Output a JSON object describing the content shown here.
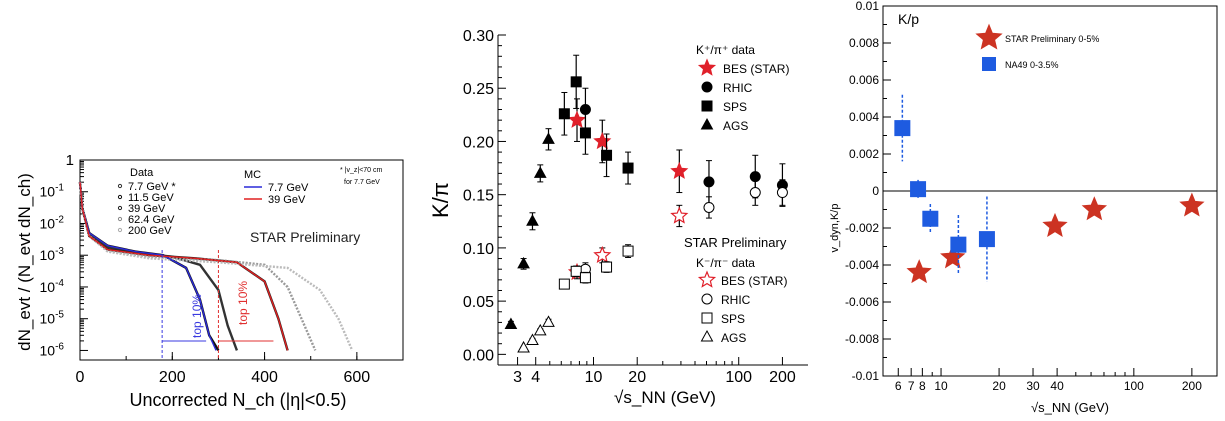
{
  "chart_data": [
    {
      "type": "line",
      "xlabel": "Uncorrected N_ch (|η|<0.5)",
      "ylabel": "dN_evt / (N_evt dN_ch)",
      "y_scale": "log",
      "xlim": [
        0,
        700
      ],
      "ylim": [
        5e-07,
        1
      ],
      "x_ticks": [
        "0",
        "200",
        "400",
        "600"
      ],
      "y_ticks": [
        "10^-6",
        "10^-5",
        "10^-4",
        "10^-3",
        "10^-2",
        "10^-1",
        "1"
      ],
      "legend_data_title": "Data",
      "legend_data": [
        "7.7 GeV *",
        "11.5 GeV",
        "39 GeV",
        "62.4 GeV",
        "200 GeV"
      ],
      "legend_mc_title": "MC",
      "legend_mc": [
        "7.7 GeV",
        "39 GeV"
      ],
      "footnote": [
        "* |v_z|<70 cm",
        "for 7.7 GeV"
      ],
      "watermark": "STAR Preliminary",
      "annotations": [
        "top 10%",
        "top 10%"
      ],
      "top10_cuts": [
        178,
        300
      ],
      "series": [
        {
          "name": "7.7 GeV *",
          "color": "#111111",
          "x": [
            0,
            5,
            20,
            60,
            120,
            180,
            230,
            260,
            280,
            300
          ],
          "y": [
            0.2,
            0.03,
            0.005,
            0.002,
            0.0013,
            0.001,
            0.0004,
            4e-05,
            3e-06,
            1e-06
          ]
        },
        {
          "name": "11.5 GeV",
          "color": "#333333",
          "x": [
            0,
            5,
            20,
            60,
            120,
            200,
            260,
            300,
            320,
            340
          ],
          "y": [
            0.2,
            0.03,
            0.005,
            0.0018,
            0.0012,
            0.0009,
            0.0005,
            8e-05,
            6e-06,
            1e-06
          ]
        },
        {
          "name": "39 GeV",
          "color": "#222222",
          "x": [
            0,
            5,
            20,
            60,
            150,
            250,
            340,
            400,
            430,
            450
          ],
          "y": [
            0.2,
            0.03,
            0.004,
            0.0015,
            0.001,
            0.0008,
            0.0006,
            0.00015,
            1e-05,
            1e-06
          ]
        },
        {
          "name": "62.4 GeV",
          "color": "#999999",
          "x": [
            0,
            5,
            20,
            60,
            150,
            300,
            400,
            450,
            480,
            510
          ],
          "y": [
            0.2,
            0.03,
            0.004,
            0.0014,
            0.0009,
            0.0007,
            0.0005,
            0.0001,
            1e-05,
            1e-06
          ]
        },
        {
          "name": "200 GeV",
          "color": "#bbbbbb",
          "x": [
            0,
            5,
            20,
            60,
            150,
            300,
            450,
            520,
            560,
            590
          ],
          "y": [
            0.2,
            0.03,
            0.004,
            0.0013,
            0.0008,
            0.0006,
            0.0004,
            8e-05,
            1e-05,
            1e-06
          ]
        },
        {
          "name": "MC 7.7 GeV",
          "color": "#2a2ad8",
          "x": [
            0,
            5,
            20,
            60,
            120,
            180,
            230,
            260,
            280,
            295
          ],
          "y": [
            0.2,
            0.03,
            0.005,
            0.002,
            0.0013,
            0.001,
            0.0004,
            4e-05,
            3e-06,
            1e-06
          ]
        },
        {
          "name": "MC 39 GeV",
          "color": "#e02020",
          "x": [
            0,
            5,
            20,
            60,
            150,
            250,
            340,
            400,
            430,
            450
          ],
          "y": [
            0.2,
            0.03,
            0.004,
            0.0015,
            0.001,
            0.0008,
            0.0006,
            0.00015,
            1e-05,
            1e-06
          ]
        }
      ]
    },
    {
      "type": "scatter",
      "xlabel": "√s_NN (GeV)",
      "ylabel": "K/π",
      "x_scale": "log",
      "xlim": [
        2.2,
        300
      ],
      "ylim": [
        -0.01,
        0.3
      ],
      "x_ticks": [
        "3",
        "4",
        "10",
        "20",
        "100",
        "200"
      ],
      "y_ticks": [
        "0.00",
        "0.05",
        "0.10",
        "0.15",
        "0.20",
        "0.25",
        "0.30"
      ],
      "legend_plus_title": "K⁺/π⁺ data",
      "legend_plus": [
        "BES (STAR)",
        "RHIC",
        "SPS",
        "AGS"
      ],
      "legend_minus_title": "K⁻/π⁻ data",
      "legend_minus": [
        "BES (STAR)",
        "RHIC",
        "SPS",
        "AGS"
      ],
      "watermark": "STAR Preliminary",
      "series": [
        {
          "name": "K+ BES (STAR)",
          "marker": "star-filled",
          "points": [
            [
              7.7,
              0.22,
              0.02
            ],
            [
              11.5,
              0.2,
              0.02
            ],
            [
              39,
              0.172,
              0.02
            ]
          ]
        },
        {
          "name": "K+ RHIC",
          "marker": "circle-filled",
          "points": [
            [
              8.8,
              0.23,
              0.02
            ],
            [
              62.4,
              0.162,
              0.02
            ],
            [
              130,
              0.167,
              0.02
            ],
            [
              200,
              0.159,
              0.02
            ]
          ]
        },
        {
          "name": "K+ SPS",
          "marker": "square-filled",
          "points": [
            [
              6.3,
              0.226,
              0.02
            ],
            [
              7.6,
              0.256,
              0.025
            ],
            [
              8.8,
              0.208,
              0.02
            ],
            [
              12.3,
              0.187,
              0.02
            ],
            [
              17.3,
              0.175,
              0.015
            ]
          ]
        },
        {
          "name": "K+ AGS",
          "marker": "triangle-filled",
          "points": [
            [
              2.7,
              0.028,
              0.003
            ],
            [
              3.3,
              0.085,
              0.005
            ],
            [
              3.8,
              0.125,
              0.008
            ],
            [
              4.3,
              0.17,
              0.008
            ],
            [
              4.9,
              0.202,
              0.01
            ]
          ]
        },
        {
          "name": "K- BES (STAR)",
          "marker": "star-open",
          "points": [
            [
              7.7,
              0.077,
              0.006
            ],
            [
              11.5,
              0.093,
              0.007
            ],
            [
              39,
              0.13,
              0.01
            ]
          ]
        },
        {
          "name": "K- RHIC",
          "marker": "circle-open",
          "points": [
            [
              8.8,
              0.08,
              0.006
            ],
            [
              62.4,
              0.138,
              0.01
            ],
            [
              130,
              0.152,
              0.012
            ],
            [
              200,
              0.152,
              0.012
            ]
          ]
        },
        {
          "name": "K- SPS",
          "marker": "square-open",
          "points": [
            [
              6.3,
              0.066,
              0.004
            ],
            [
              7.6,
              0.078,
              0.005
            ],
            [
              8.8,
              0.072,
              0.005
            ],
            [
              12.3,
              0.082,
              0.005
            ],
            [
              17.3,
              0.097,
              0.006
            ]
          ]
        },
        {
          "name": "K- AGS",
          "marker": "triangle-open",
          "points": [
            [
              3.3,
              0.006,
              0.001
            ],
            [
              3.8,
              0.013,
              0.002
            ],
            [
              4.3,
              0.022,
              0.002
            ],
            [
              4.9,
              0.03,
              0.003
            ]
          ]
        }
      ]
    },
    {
      "type": "scatter",
      "title": "K/p",
      "xlabel": "√s_NN (GeV)",
      "ylabel": "v_dyn,K/p",
      "x_scale": "log",
      "xlim": [
        5,
        270
      ],
      "ylim": [
        -0.01,
        0.01
      ],
      "x_ticks": [
        "6",
        "7",
        "8",
        "10",
        "20",
        "30",
        "40",
        "100",
        "200"
      ],
      "y_ticks": [
        "-0.01",
        "-0.008",
        "-0.006",
        "-0.004",
        "-0.002",
        "0",
        "0.002",
        "0.004",
        "0.006",
        "0.008",
        "0.01"
      ],
      "series": [
        {
          "name": "STAR Preliminary 0-5%",
          "color": "#cc3322",
          "marker": "star",
          "points": [
            [
              7.7,
              -0.0044,
              0.0002
            ],
            [
              11.5,
              -0.0036,
              0.0002
            ],
            [
              39,
              -0.0019,
              0.0002
            ],
            [
              62.4,
              -0.001,
              0.0002
            ],
            [
              200,
              -0.0008,
              0.0002
            ]
          ]
        },
        {
          "name": "NA49 0-3.5%",
          "color": "#1e5be0",
          "marker": "square",
          "points": [
            [
              6.3,
              0.0034,
              0.0018
            ],
            [
              7.6,
              0.0001,
              0.0005
            ],
            [
              8.8,
              -0.0015,
              0.0008
            ],
            [
              12.3,
              -0.0029,
              0.0016
            ],
            [
              17.3,
              -0.0026,
              0.0023
            ]
          ]
        }
      ]
    }
  ]
}
